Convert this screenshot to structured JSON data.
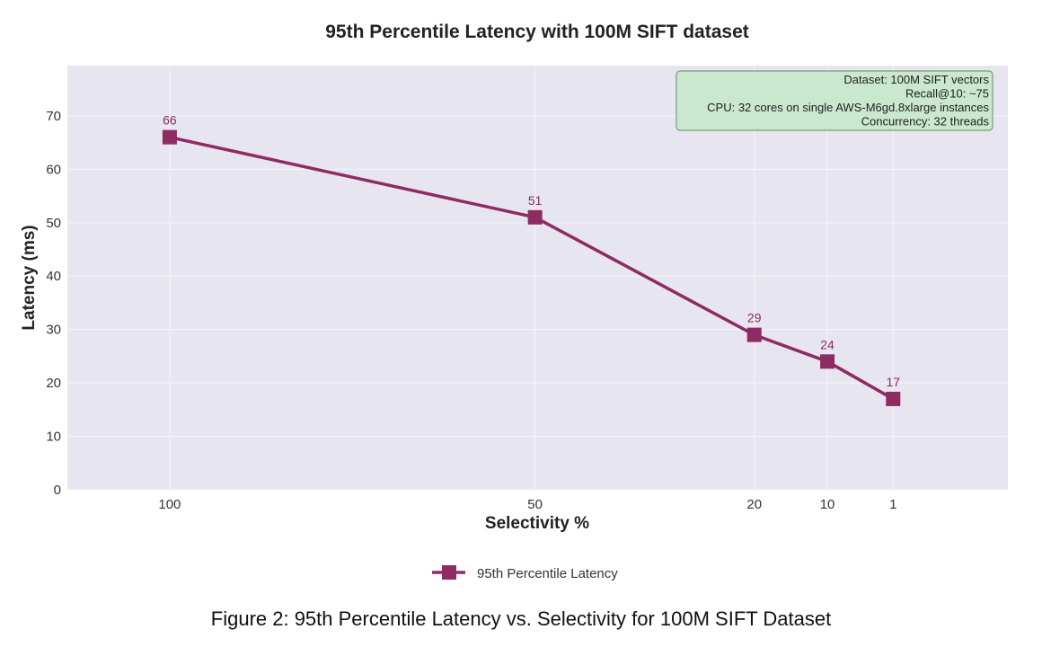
{
  "chart_data": {
    "type": "line",
    "title": "95th Percentile Latency with 100M SIFT dataset",
    "xlabel": "Selectivity %",
    "ylabel": "Latency (ms)",
    "x_categories": [
      "100",
      "50",
      "20",
      "10",
      "1"
    ],
    "x_values": [
      100,
      50,
      20,
      10,
      1
    ],
    "x_axis_reversed": true,
    "xlim": [
      114,
      -14.7
    ],
    "ylim": [
      0,
      79.4
    ],
    "yticks": [
      0,
      10,
      20,
      30,
      40,
      50,
      60,
      70
    ],
    "grid": true,
    "legend_position": "bottom-center",
    "series": [
      {
        "name": "95th Percentile Latency",
        "values": [
          66,
          51,
          29,
          24,
          17
        ],
        "data_labels": [
          "66",
          "51",
          "29",
          "24",
          "17"
        ],
        "color": "#8e2b62",
        "marker": "square"
      }
    ],
    "annotation": {
      "position": "top-right",
      "lines": [
        "Dataset: 100M SIFT vectors",
        "Recall@10: ~75",
        "CPU: 32 cores on single AWS-M6gd.8xlarge instances",
        "Concurrency: 32 threads"
      ],
      "background": "#c9e8cd",
      "border": "#7a9a7e"
    },
    "plot_background": "#e7e6f0"
  },
  "caption": "Figure 2: 95th Percentile Latency vs. Selectivity for 100M SIFT Dataset"
}
